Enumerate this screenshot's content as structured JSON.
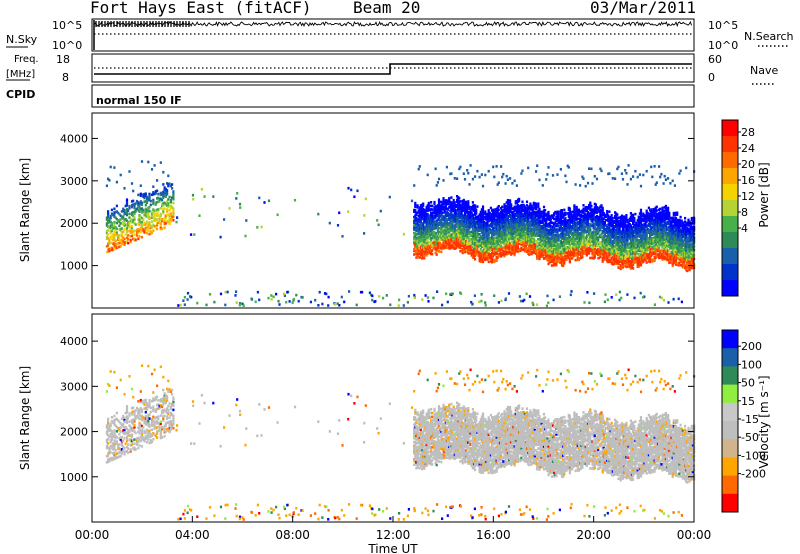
{
  "header": {
    "station": "Fort Hays East (fitACF)",
    "beam": "Beam 20",
    "date": "03/Mar/2011"
  },
  "status_panels": {
    "nsky_label": "N.Sky",
    "nsky_ticks": [
      "10^5",
      "10^0"
    ],
    "nsearch_label": "N.Search",
    "nsearch_ticks": [
      "10^5",
      "10^0"
    ],
    "freq_label": "Freq.",
    "freq_unit": "[MHz]",
    "freq_ticks": [
      "18",
      "8"
    ],
    "nave_label": "Nave",
    "nave_ticks": [
      "60",
      "0"
    ],
    "cpid_label": "CPID",
    "cpid_value": "normal 150 IF"
  },
  "colors": {
    "power_scale": [
      "#0000ff",
      "#0033cc",
      "#1a5faa",
      "#2e8b57",
      "#48b04a",
      "#b5d334",
      "#f3d400",
      "#ffa500",
      "#ff6a00",
      "#ff3300",
      "#ff0000"
    ],
    "velocity_scale": [
      "#ff0000",
      "#ff6a00",
      "#ffa500",
      "#d2b48c",
      "#bebebe",
      "#c8c8c8",
      "#90ee40",
      "#2e8b57",
      "#1a5faa",
      "#0000ff"
    ],
    "ground_scatter": "#bebebe"
  },
  "chart_data": [
    {
      "type": "heatmap",
      "name": "power",
      "ylabel": "Slant Range [km]",
      "yticks": [
        "4000",
        "3000",
        "2000",
        "1000"
      ],
      "ylim": [
        0,
        4600
      ],
      "xlim": [
        "00:00",
        "24:00"
      ],
      "colorbar_label": "Power [dB]",
      "colorbar_ticks": [
        "28",
        "24",
        "20",
        "16",
        "12",
        "8",
        "4"
      ],
      "bands": [
        {
          "t0": 0.5,
          "t1": 3.2,
          "r0": 1250,
          "r1": 3200,
          "level": "mixed"
        },
        {
          "t0": 12.8,
          "t1": 24.0,
          "r0": 1050,
          "r1": 3300,
          "level": "mixed"
        }
      ]
    },
    {
      "type": "heatmap",
      "name": "velocity",
      "ylabel": "Slant Range [km]",
      "yticks": [
        "4000",
        "3000",
        "2000",
        "1000"
      ],
      "ylim": [
        0,
        4600
      ],
      "xlim": [
        "00:00",
        "24:00"
      ],
      "xticks": [
        "00:00",
        "04:00",
        "08:00",
        "12:00",
        "16:00",
        "20:00",
        "00:00"
      ],
      "xlabel": "Time UT",
      "colorbar_label": "Velocity [m s⁻¹]",
      "colorbar_ticks": [
        "200",
        "100",
        "50",
        "15",
        "-15",
        "-50",
        "-100",
        "-200"
      ]
    }
  ]
}
